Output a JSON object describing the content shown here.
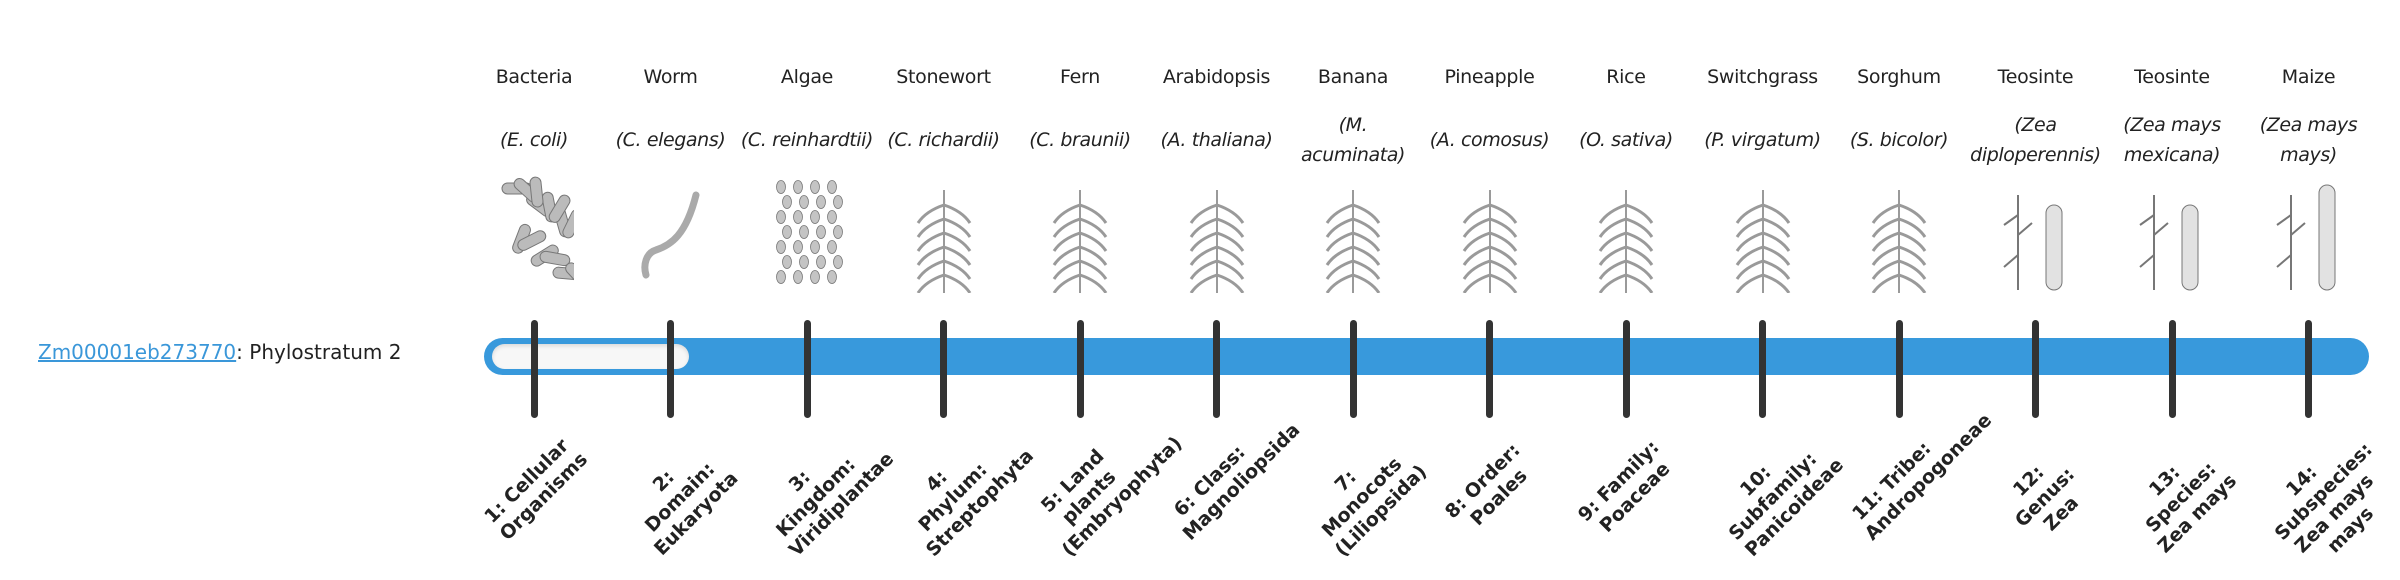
{
  "gene": {
    "id": "Zm00001eb273770",
    "suffix": ": Phylostratum 2",
    "phylostratum": 2,
    "total_strata": 14
  },
  "colors": {
    "bar": "#3899dc",
    "link": "#3a97d9",
    "tick": "#333333"
  },
  "organisms": [
    {
      "common": "Bacteria",
      "sci": "(E. coli)",
      "icon": "bacteria-icon"
    },
    {
      "common": "Worm",
      "sci": "(C. elegans)",
      "icon": "worm-icon"
    },
    {
      "common": "Algae",
      "sci": "(C. reinhardtii)",
      "icon": "algae-icon"
    },
    {
      "common": "Stonewort",
      "sci": "(C. richardii)",
      "icon": "stonewort-icon"
    },
    {
      "common": "Fern",
      "sci": "(C. braunii)",
      "icon": "fern-icon"
    },
    {
      "common": "Arabidopsis",
      "sci": "(A. thaliana)",
      "icon": "arabidopsis-icon"
    },
    {
      "common": "Banana",
      "sci": "(M. acuminata)",
      "icon": "banana-icon"
    },
    {
      "common": "Pineapple",
      "sci": "(A. comosus)",
      "icon": "pineapple-icon"
    },
    {
      "common": "Rice",
      "sci": "(O. sativa)",
      "icon": "rice-icon"
    },
    {
      "common": "Switchgrass",
      "sci": "(P. virgatum)",
      "icon": "switchgrass-icon"
    },
    {
      "common": "Sorghum",
      "sci": "(S. bicolor)",
      "icon": "sorghum-icon"
    },
    {
      "common": "Teosinte",
      "sci": "(Zea diploperennis)",
      "icon": "teosinte-icon"
    },
    {
      "common": "Teosinte",
      "sci": "(Zea mays mexicana)",
      "icon": "teosinte-icon"
    },
    {
      "common": "Maize",
      "sci": "(Zea mays mays)",
      "icon": "maize-icon"
    }
  ],
  "strata": [
    "1: Cellular Organisms",
    "2: Domain: Eukaryota",
    "3: Kingdom: Viridiplantae",
    "4: Phylum: Streptophyta",
    "5: Land plants (Embryophyta)",
    "6: Class: Magnoliopsida",
    "7: Monocots (Liliopsida)",
    "8: Order: Poales",
    "9: Family: Poaceae",
    "10: Subfamily: Panicoideae",
    "11: Tribe: Andropogoneae",
    "12: Genus: Zea",
    "13: Species: Zea mays",
    "14: Subspecies: Zea mays mays"
  ]
}
